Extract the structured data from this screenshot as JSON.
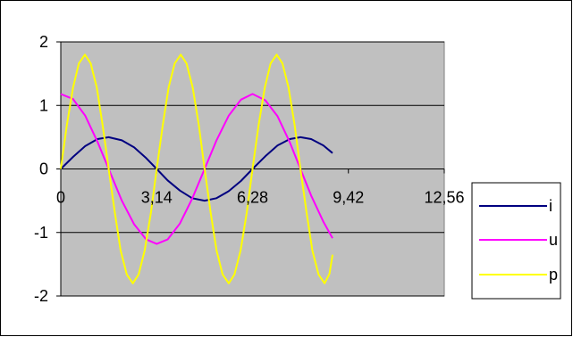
{
  "chart_data": {
    "type": "line",
    "title": "",
    "xlabel": "",
    "ylabel": "",
    "xlim": [
      0,
      12.56
    ],
    "ylim": [
      -2,
      2
    ],
    "x_ticks": [
      0,
      3.14,
      6.28,
      9.42,
      12.56
    ],
    "x_tick_labels": [
      "0",
      "3,14",
      "6,28",
      "9,42",
      "12,56"
    ],
    "y_ticks": [
      2,
      1,
      0,
      -1,
      -2
    ],
    "y_tick_labels": [
      "2",
      "1",
      "0",
      "-1",
      "-2"
    ],
    "grid": "horizontal",
    "plot_background": "#c0c0c0",
    "legend_position": "right",
    "series": [
      {
        "name": "i",
        "color": "#000080",
        "x": [
          0,
          0.4,
          0.8,
          1.2,
          1.57,
          2.0,
          2.4,
          2.8,
          3.14,
          3.5,
          3.9,
          4.3,
          4.71,
          5.1,
          5.5,
          5.9,
          6.28,
          6.7,
          7.1,
          7.5,
          7.85,
          8.2,
          8.6,
          8.9
        ],
        "values": [
          0,
          0.19,
          0.36,
          0.47,
          0.5,
          0.45,
          0.34,
          0.17,
          0,
          -0.18,
          -0.34,
          -0.46,
          -0.5,
          -0.46,
          -0.35,
          -0.19,
          0,
          0.2,
          0.37,
          0.47,
          0.5,
          0.47,
          0.37,
          0.25
        ]
      },
      {
        "name": "u",
        "color": "#ff00ff",
        "x": [
          0,
          0.4,
          0.8,
          1.2,
          1.57,
          2.0,
          2.4,
          2.8,
          3.14,
          3.5,
          3.9,
          4.3,
          4.71,
          5.1,
          5.5,
          5.9,
          6.28,
          6.7,
          7.1,
          7.5,
          7.85,
          8.2,
          8.6,
          8.9
        ],
        "values": [
          1.18,
          1.1,
          0.84,
          0.43,
          0,
          -0.5,
          -0.87,
          -1.11,
          -1.18,
          -1.11,
          -0.86,
          -0.47,
          0,
          0.45,
          0.84,
          1.09,
          1.18,
          1.08,
          0.83,
          0.42,
          0,
          -0.42,
          -0.83,
          -1.09
        ]
      },
      {
        "name": "p",
        "color": "#ffff00",
        "x": [
          0,
          0.2,
          0.4,
          0.59,
          0.79,
          0.98,
          1.18,
          1.37,
          1.57,
          1.77,
          1.96,
          2.16,
          2.36,
          2.55,
          2.75,
          2.95,
          3.14,
          3.34,
          3.53,
          3.73,
          3.93,
          4.12,
          4.32,
          4.52,
          4.71,
          4.91,
          5.1,
          5.3,
          5.5,
          5.69,
          5.89,
          6.09,
          6.28,
          6.48,
          6.68,
          6.87,
          7.07,
          7.26,
          7.46,
          7.66,
          7.85,
          8.05,
          8.24,
          8.44,
          8.64,
          8.8,
          8.9
        ],
        "values": [
          0,
          0.69,
          1.28,
          1.66,
          1.8,
          1.66,
          1.28,
          0.69,
          0,
          -0.69,
          -1.28,
          -1.66,
          -1.8,
          -1.66,
          -1.28,
          -0.69,
          0,
          0.69,
          1.28,
          1.66,
          1.8,
          1.66,
          1.28,
          0.69,
          0,
          -0.69,
          -1.28,
          -1.66,
          -1.8,
          -1.66,
          -1.28,
          -0.69,
          0,
          0.69,
          1.28,
          1.66,
          1.8,
          1.66,
          1.28,
          0.69,
          0,
          -0.69,
          -1.28,
          -1.66,
          -1.8,
          -1.65,
          -1.35
        ]
      }
    ]
  }
}
